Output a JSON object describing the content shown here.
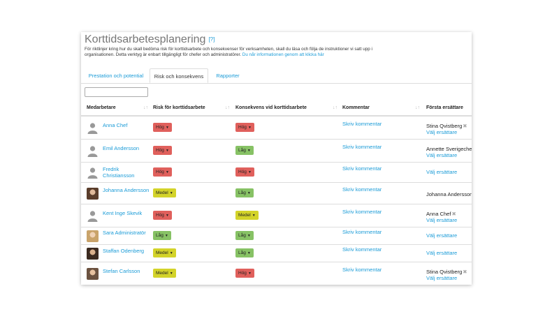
{
  "page": {
    "title": "Korttidsarbetesplanering",
    "help": "[?]",
    "intro": "För riktlinjer kring hur du skall bedöma risk för korttidsarbete och konsekvenser för verksamheten, skall du läsa och följa de instruktioner vi satt upp i organisationen. Detta verktyg är enbart tillgängligt för chefer och administratörer.",
    "intro_link": "Du når informationen genom att klicka här"
  },
  "tabs": [
    "Prestation och potential",
    "Risk och konsekvens",
    "Rapporter"
  ],
  "filter": {
    "value": "",
    "placeholder": ""
  },
  "columns": {
    "employee": "Medarbetare",
    "risk": "Risk för korttidsarbete",
    "consequence": "Konsekvens vid korttidsarbete",
    "comment": "Kommentar",
    "successor": "Första ersättare"
  },
  "rows": [
    {
      "name": "Anna Chef",
      "risk": "Hög",
      "consequence": "Hög",
      "comment": "Skriv kommentar",
      "successor": "Stina Qvistberg",
      "choose": "Välj ersättare",
      "avatar": "person-placeholder-icon"
    },
    {
      "name": "Emil Andersson",
      "risk": "Hög",
      "consequence": "Låg",
      "comment": "Skriv kommentar",
      "successor": "Annette Sverigechef",
      "choose": "Välj ersättare",
      "avatar": "person-placeholder-icon"
    },
    {
      "name": "Fredrik Christiansson",
      "risk": "Hög",
      "consequence": "Hög",
      "comment": "Skriv kommentar",
      "successor": "",
      "choose": "Välj ersättare",
      "avatar": "person-placeholder-icon"
    },
    {
      "name": "Johanna Andersson",
      "risk": "Medel",
      "consequence": "Låg",
      "comment": "Skriv kommentar",
      "successor": "Johanna Andersson",
      "choose": "",
      "avatar": "photo"
    },
    {
      "name": "Kent Inge Skevik",
      "risk": "Hög",
      "consequence": "Medel",
      "comment": "Skriv kommentar",
      "successor": "Anna Chef",
      "choose": "Välj ersättare",
      "avatar": "person-placeholder-icon"
    },
    {
      "name": "Sara Administratör",
      "risk": "Låg",
      "consequence": "Låg",
      "comment": "Skriv kommentar",
      "successor": "",
      "choose": "Välj ersättare",
      "avatar": "photo"
    },
    {
      "name": "Staffan Odenberg",
      "risk": "Medel",
      "consequence": "Låg",
      "comment": "Skriv kommentar",
      "successor": "",
      "choose": "Välj ersättare",
      "avatar": "photo"
    },
    {
      "name": "Stefan Carlsson",
      "risk": "Medel",
      "consequence": "Hög",
      "comment": "Skriv kommentar",
      "successor": "Stina Qvistberg",
      "choose": "Välj ersättare",
      "avatar": "photo"
    }
  ],
  "colors": {
    "link": "#1a9bd7",
    "hog": "#e0605c",
    "lag": "#87c265",
    "medel": "#d3d32a"
  }
}
